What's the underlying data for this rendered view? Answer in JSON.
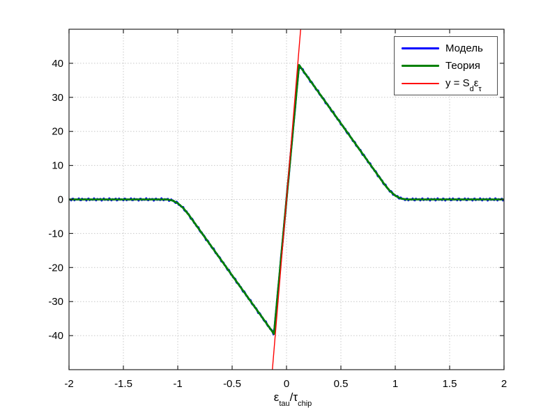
{
  "figure": {
    "background": "#ffffff",
    "axes_color": "#262626",
    "grid_color": "#c8c8c8",
    "xlabel_parts": {
      "eps": "ε",
      "sub1": "tau",
      "slash_tau": "/τ",
      "sub2": "chip"
    },
    "legend": {
      "entry1_label": "Модель",
      "entry2_label": "Теория",
      "entry3_parts": {
        "pre": "y = S",
        "sub1": "d",
        "mid": "ε",
        "sub2": "τ"
      }
    }
  },
  "chart_data": {
    "type": "line",
    "title": "",
    "xlabel": "epsilon_tau/tau_chip",
    "ylabel": "",
    "xlim": [
      -2,
      2
    ],
    "ylim": [
      -50,
      50
    ],
    "grid": true,
    "legend_position": "top-right",
    "x_ticks": [
      -2,
      -1.5,
      -1,
      -0.5,
      0,
      0.5,
      1,
      1.5,
      2
    ],
    "x_tick_labels": [
      "-2",
      "-1.5",
      "-1",
      "-0.5",
      "0",
      "0.5",
      "1",
      "1.5",
      "2"
    ],
    "y_ticks": [
      -40,
      -30,
      -20,
      -10,
      0,
      10,
      20,
      30,
      40
    ],
    "y_tick_labels": [
      "-40",
      "-30",
      "-20",
      "-10",
      "0",
      "10",
      "20",
      "30",
      "40"
    ],
    "series": [
      {
        "name": "Модель",
        "color": "#0000ff",
        "width": 2.8,
        "noise_amplitude": 0.35,
        "x": [
          -2,
          -1.8,
          -1.6,
          -1.4,
          -1.2,
          -1.1,
          -1.05,
          -1.0,
          -0.95,
          -0.9,
          -0.8,
          -0.7,
          -0.6,
          -0.5,
          -0.4,
          -0.3,
          -0.2,
          -0.115,
          -0.0575,
          0,
          0.0575,
          0.115,
          0.2,
          0.3,
          0.4,
          0.5,
          0.6,
          0.7,
          0.8,
          0.9,
          0.95,
          1.0,
          1.05,
          1.1,
          1.2,
          1.4,
          1.6,
          1.8,
          2
        ],
        "y": [
          0,
          0,
          0,
          0,
          0,
          0,
          -0.28,
          -1.12,
          -2.51,
          -4.46,
          -8.93,
          -13.39,
          -17.85,
          -22.32,
          -26.78,
          -31.24,
          -35.71,
          -39.5,
          -19.75,
          0,
          19.75,
          39.5,
          35.71,
          31.24,
          26.78,
          22.32,
          17.85,
          13.39,
          8.93,
          4.46,
          2.51,
          1.12,
          0.28,
          0,
          0,
          0,
          0,
          0,
          0
        ]
      },
      {
        "name": "Теория",
        "color": "#008000",
        "width": 2.8,
        "x": [
          -2,
          -1.8,
          -1.6,
          -1.4,
          -1.2,
          -1.1,
          -1.05,
          -1.0,
          -0.95,
          -0.9,
          -0.8,
          -0.7,
          -0.6,
          -0.5,
          -0.4,
          -0.3,
          -0.2,
          -0.115,
          -0.0575,
          0,
          0.0575,
          0.115,
          0.2,
          0.3,
          0.4,
          0.5,
          0.6,
          0.7,
          0.8,
          0.9,
          0.95,
          1.0,
          1.05,
          1.1,
          1.2,
          1.4,
          1.6,
          1.8,
          2
        ],
        "y": [
          0,
          0,
          0,
          0,
          0,
          0,
          -0.28,
          -1.12,
          -2.51,
          -4.46,
          -8.93,
          -13.39,
          -17.85,
          -22.32,
          -26.78,
          -31.24,
          -35.71,
          -39.5,
          -19.75,
          0,
          19.75,
          39.5,
          35.71,
          31.24,
          26.78,
          22.32,
          17.85,
          13.39,
          8.93,
          4.46,
          2.51,
          1.12,
          0.28,
          0,
          0,
          0,
          0,
          0,
          0
        ]
      },
      {
        "name": "y = S_d*eps_tau",
        "color": "#ff0000",
        "width": 1.4,
        "slope": 385,
        "x": [
          -0.13,
          0.13
        ],
        "y": [
          -50,
          50
        ]
      }
    ]
  }
}
